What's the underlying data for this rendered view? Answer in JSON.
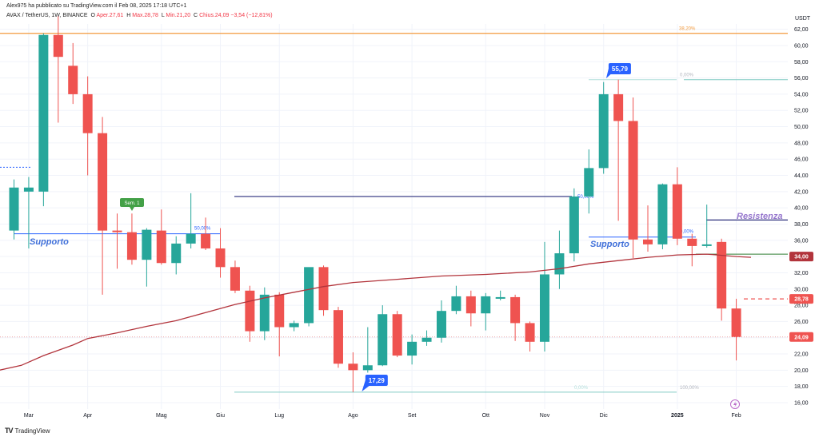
{
  "header": {
    "publisher": "Alex975 ha pubblicato su TradingView.com il Feb 08, 2025 17:18 UTC+1",
    "symbol": "AVAX / TetherUS, 1W, BINANCE",
    "o_label": "O",
    "o_value": "Aper.27,61",
    "h_label": "H",
    "h_value": "Max.28,78",
    "l_label": "L",
    "l_value": "Min.21,20",
    "c_label": "C",
    "c_value": "Chius.24,09",
    "change": "−3,54 (−12,81%)"
  },
  "footer": {
    "logo": "TV",
    "brand": "TradingView"
  },
  "colors": {
    "up": "#26a69a",
    "down": "#ef5350",
    "ma": "#b2343c",
    "orange": "#f29a3d",
    "navy": "#2b2f7c",
    "teal": "#80cbc4",
    "purple": "#9575cd",
    "supportBlue": "#2962ff"
  },
  "chart_data": {
    "type": "candlestick",
    "currency": "USDT",
    "ylim": [
      15,
      64
    ],
    "y_ticks": [
      "16,00",
      "18,00",
      "20,00",
      "22,00",
      "24,00",
      "26,00",
      "28,00",
      "30,00",
      "32,00",
      "34,00",
      "36,00",
      "38,00",
      "40,00",
      "42,00",
      "44,00",
      "46,00",
      "48,00",
      "50,00",
      "52,00",
      "54,00",
      "56,00",
      "58,00",
      "60,00",
      "62,00"
    ],
    "x_labels": [
      {
        "label": "Mar",
        "index": 1
      },
      {
        "label": "Apr",
        "index": 5
      },
      {
        "label": "Mag",
        "index": 10
      },
      {
        "label": "Giu",
        "index": 14
      },
      {
        "label": "Lug",
        "index": 18
      },
      {
        "label": "Ago",
        "index": 23
      },
      {
        "label": "Set",
        "index": 27
      },
      {
        "label": "Ott",
        "index": 32
      },
      {
        "label": "Nov",
        "index": 36
      },
      {
        "label": "Dic",
        "index": 40
      },
      {
        "label": "2025",
        "index": 45
      },
      {
        "label": "Feb",
        "index": 49
      }
    ],
    "candles": [
      {
        "o": 37.2,
        "h": 43.5,
        "l": 36.1,
        "c": 42.5
      },
      {
        "o": 42.0,
        "h": 43.8,
        "l": 35.0,
        "c": 42.5
      },
      {
        "o": 42.0,
        "h": 61.5,
        "l": 40.2,
        "c": 61.3
      },
      {
        "o": 61.3,
        "h": 63.6,
        "l": 50.5,
        "c": 58.6
      },
      {
        "o": 57.5,
        "h": 60.3,
        "l": 52.8,
        "c": 54.0
      },
      {
        "o": 54.0,
        "h": 56.2,
        "l": 44.0,
        "c": 49.2
      },
      {
        "o": 49.2,
        "h": 51.2,
        "l": 29.3,
        "c": 37.2
      },
      {
        "o": 37.2,
        "h": 39.3,
        "l": 32.5,
        "c": 37.0
      },
      {
        "o": 37.0,
        "h": 39.3,
        "l": 33.0,
        "c": 33.6
      },
      {
        "o": 33.6,
        "h": 37.5,
        "l": 30.3,
        "c": 37.3
      },
      {
        "o": 37.2,
        "h": 39.8,
        "l": 33.0,
        "c": 33.2
      },
      {
        "o": 33.2,
        "h": 36.5,
        "l": 31.8,
        "c": 35.6
      },
      {
        "o": 35.6,
        "h": 41.8,
        "l": 35.0,
        "c": 36.8
      },
      {
        "o": 36.8,
        "h": 38.8,
        "l": 34.8,
        "c": 35.0
      },
      {
        "o": 35.0,
        "h": 37.5,
        "l": 31.4,
        "c": 32.7
      },
      {
        "o": 32.7,
        "h": 33.5,
        "l": 29.5,
        "c": 29.8
      },
      {
        "o": 29.8,
        "h": 30.4,
        "l": 23.5,
        "c": 24.8
      },
      {
        "o": 24.8,
        "h": 30.2,
        "l": 23.7,
        "c": 29.3
      },
      {
        "o": 29.3,
        "h": 29.6,
        "l": 21.7,
        "c": 25.3
      },
      {
        "o": 25.3,
        "h": 26.1,
        "l": 24.8,
        "c": 25.8
      },
      {
        "o": 25.8,
        "h": 32.6,
        "l": 25.4,
        "c": 32.7
      },
      {
        "o": 32.7,
        "h": 32.9,
        "l": 26.7,
        "c": 27.4
      },
      {
        "o": 27.4,
        "h": 27.8,
        "l": 20.3,
        "c": 20.8
      },
      {
        "o": 20.8,
        "h": 22.2,
        "l": 17.3,
        "c": 20.0
      },
      {
        "o": 20.0,
        "h": 25.3,
        "l": 19.7,
        "c": 20.6
      },
      {
        "o": 20.6,
        "h": 28.0,
        "l": 20.5,
        "c": 26.9
      },
      {
        "o": 26.9,
        "h": 27.3,
        "l": 21.6,
        "c": 21.8
      },
      {
        "o": 21.8,
        "h": 24.4,
        "l": 20.7,
        "c": 23.5
      },
      {
        "o": 23.5,
        "h": 24.9,
        "l": 23.0,
        "c": 24.0
      },
      {
        "o": 24.0,
        "h": 28.6,
        "l": 23.4,
        "c": 27.3
      },
      {
        "o": 27.3,
        "h": 30.4,
        "l": 26.9,
        "c": 29.1
      },
      {
        "o": 29.1,
        "h": 29.8,
        "l": 25.4,
        "c": 27.0
      },
      {
        "o": 27.0,
        "h": 29.5,
        "l": 24.9,
        "c": 29.1
      },
      {
        "o": 28.8,
        "h": 29.8,
        "l": 28.6,
        "c": 29.0
      },
      {
        "o": 29.0,
        "h": 29.3,
        "l": 23.6,
        "c": 25.8
      },
      {
        "o": 25.8,
        "h": 26.0,
        "l": 22.3,
        "c": 23.5
      },
      {
        "o": 23.5,
        "h": 35.8,
        "l": 22.3,
        "c": 31.8
      },
      {
        "o": 31.8,
        "h": 37.2,
        "l": 30.0,
        "c": 34.4
      },
      {
        "o": 34.4,
        "h": 42.4,
        "l": 33.4,
        "c": 41.4
      },
      {
        "o": 41.4,
        "h": 47.2,
        "l": 39.3,
        "c": 44.9
      },
      {
        "o": 44.9,
        "h": 55.5,
        "l": 44.2,
        "c": 54.0
      },
      {
        "o": 54.0,
        "h": 55.8,
        "l": 38.4,
        "c": 50.7
      },
      {
        "o": 50.7,
        "h": 53.6,
        "l": 33.8,
        "c": 36.1
      },
      {
        "o": 36.1,
        "h": 40.3,
        "l": 34.6,
        "c": 35.5
      },
      {
        "o": 35.5,
        "h": 43.0,
        "l": 34.9,
        "c": 42.9
      },
      {
        "o": 42.9,
        "h": 45.0,
        "l": 35.4,
        "c": 36.2
      },
      {
        "o": 36.2,
        "h": 36.8,
        "l": 32.8,
        "c": 35.3
      },
      {
        "o": 35.3,
        "h": 40.4,
        "l": 35.1,
        "c": 35.5
      },
      {
        "o": 35.8,
        "h": 36.2,
        "l": 26.1,
        "c": 27.6
      },
      {
        "o": 27.6,
        "h": 28.8,
        "l": 21.2,
        "c": 24.1
      }
    ],
    "ma_series": [
      {
        "i": -1,
        "v": 20.0
      },
      {
        "i": 0.5,
        "v": 20.6
      },
      {
        "i": 2,
        "v": 21.8
      },
      {
        "i": 4,
        "v": 23.1
      },
      {
        "i": 5,
        "v": 23.9
      },
      {
        "i": 7,
        "v": 24.6
      },
      {
        "i": 9,
        "v": 25.4
      },
      {
        "i": 11,
        "v": 26.1
      },
      {
        "i": 13,
        "v": 27.1
      },
      {
        "i": 15,
        "v": 28.1
      },
      {
        "i": 17,
        "v": 28.9
      },
      {
        "i": 19,
        "v": 29.6
      },
      {
        "i": 21,
        "v": 30.3
      },
      {
        "i": 23,
        "v": 30.8
      },
      {
        "i": 26,
        "v": 31.2
      },
      {
        "i": 29,
        "v": 31.6
      },
      {
        "i": 32,
        "v": 31.8
      },
      {
        "i": 35,
        "v": 32.1
      },
      {
        "i": 37,
        "v": 32.5
      },
      {
        "i": 39,
        "v": 33.1
      },
      {
        "i": 41,
        "v": 33.5
      },
      {
        "i": 43,
        "v": 33.9
      },
      {
        "i": 45,
        "v": 34.2
      },
      {
        "i": 47,
        "v": 34.3
      },
      {
        "i": 49,
        "v": 34.0
      },
      {
        "i": 50,
        "v": 33.9
      }
    ],
    "price_labels": [
      {
        "text": "34,00",
        "value": 34.0,
        "color": "#b2343c"
      },
      {
        "text": "28,78",
        "value": 28.78,
        "color": "#ef5350"
      },
      {
        "text": "24,09",
        "value": 24.09,
        "color": "#ef5350"
      }
    ],
    "annotations": {
      "fib_top_text": "38,20%",
      "fib_mid_text": "50,00%",
      "fib_mid2_text": "0,00%",
      "fib_zero_text": "0,00%",
      "fib_hundred_text": "100,00%",
      "fib_top_right_text": "0,00%",
      "fib_mid_right_text": "50,00%",
      "high_label": "55,79",
      "low_label": "17,29",
      "green_marker": "Sem. 1",
      "support_left": "Supporto",
      "support_right": "Supporto",
      "resistance": "Resistenza"
    }
  }
}
